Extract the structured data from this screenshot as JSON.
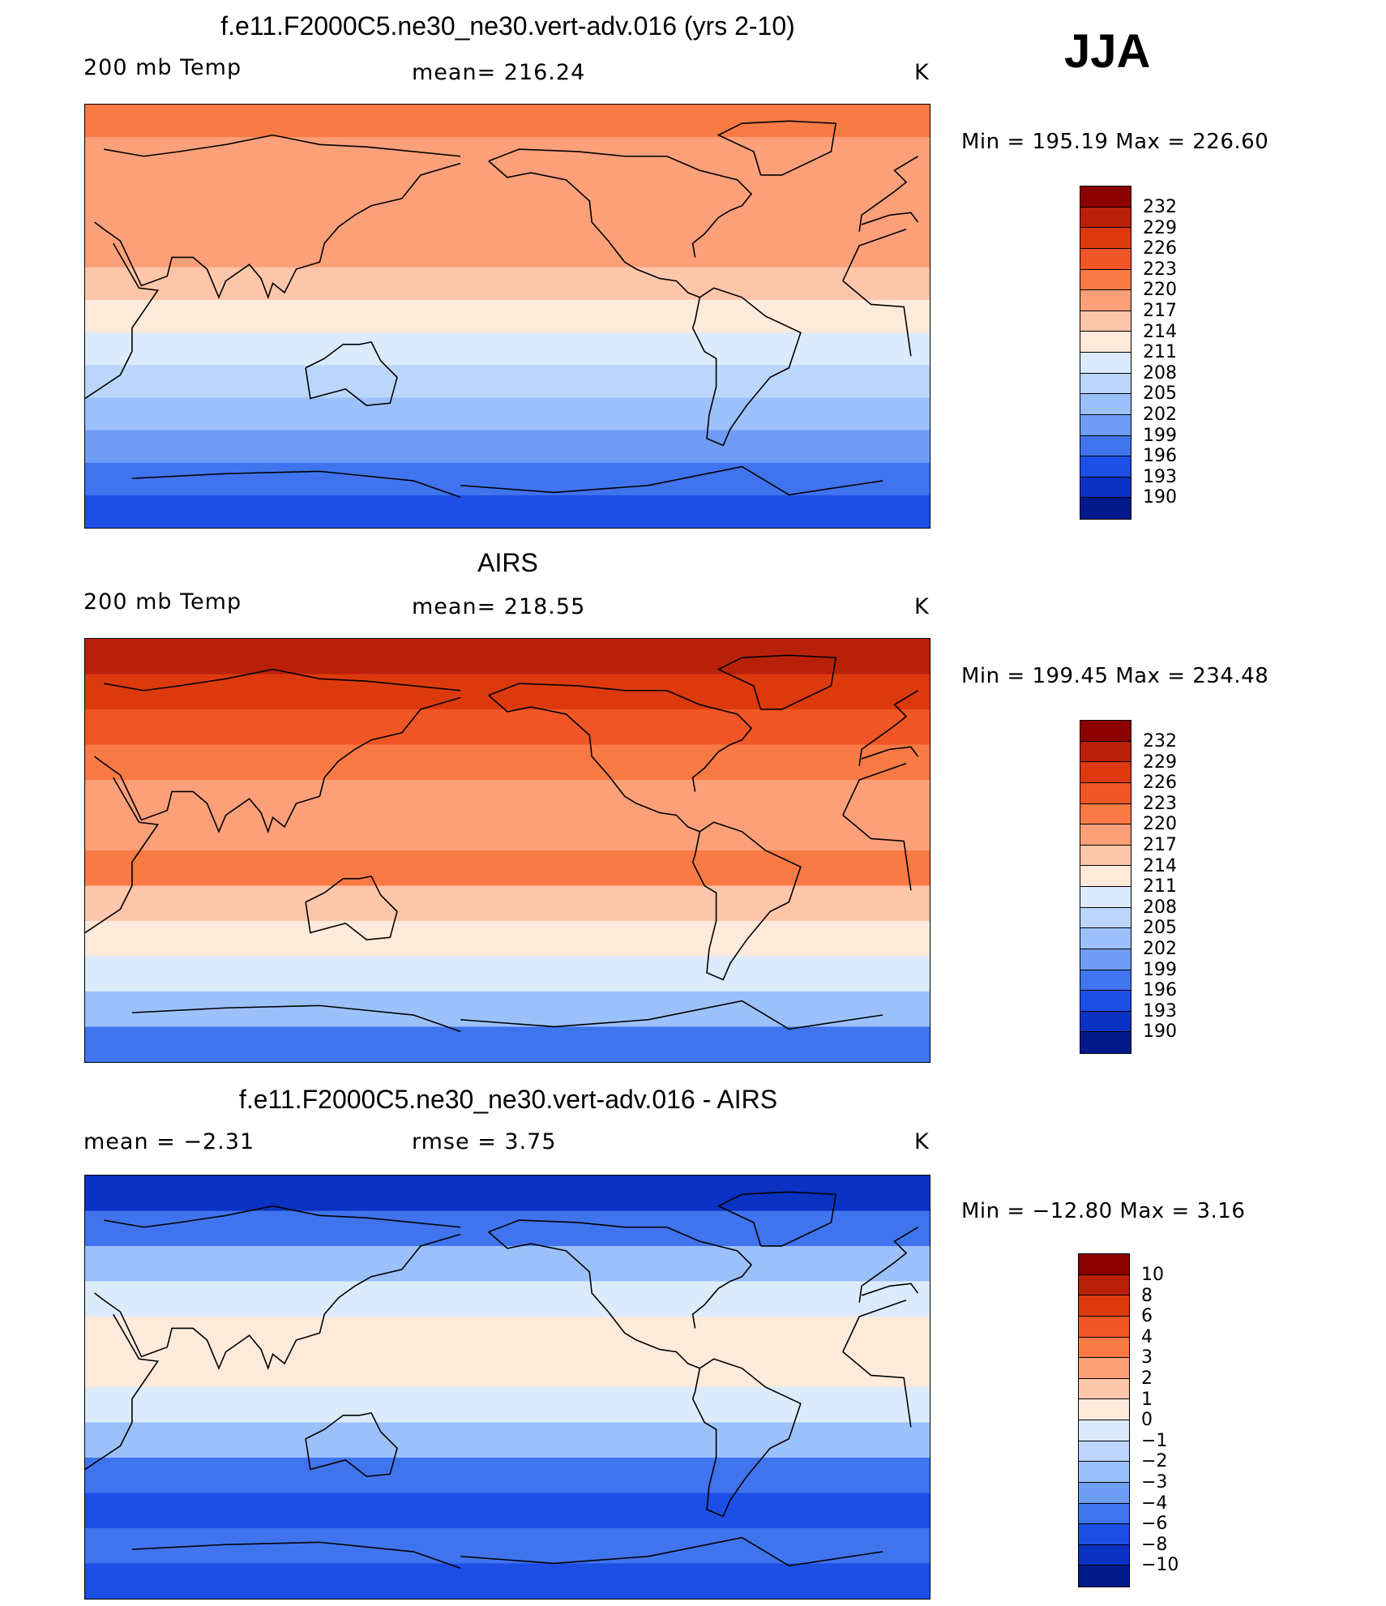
{
  "season": "JJA",
  "palette_temp": [
    "#8b0000",
    "#b8200a",
    "#dc3a0c",
    "#f05626",
    "#f97a45",
    "#fca07a",
    "#fdc6aa",
    "#feeadb",
    "#dcebfb",
    "#bcd6fb",
    "#9cc0fa",
    "#6f9df5",
    "#3f74ee",
    "#1d4fe6",
    "#0b32c2",
    "#001a8a"
  ],
  "palette_diff": [
    "#8b0000",
    "#b8200a",
    "#dc3a0c",
    "#f05626",
    "#f97a45",
    "#fca07a",
    "#fdc6aa",
    "#feeadb",
    "#dcebfb",
    "#bcd6fb",
    "#9cc0fa",
    "#6f9df5",
    "#3f74ee",
    "#1d4fe6",
    "#0b32c2",
    "#001a8a"
  ],
  "panels": [
    {
      "title": "f.e11.F2000C5.ne30_ne30.vert-adv.016 (yrs 2-10)",
      "left": "200 mb Temp",
      "center": "mean=  216.24",
      "units": "K",
      "minmax": "Min  =  195.19  Max  =  226.60",
      "levels": [
        "232",
        "229",
        "226",
        "223",
        "220",
        "217",
        "214",
        "211",
        "208",
        "205",
        "202",
        "199",
        "196",
        "193",
        "190"
      ],
      "bands": [
        {
          "color_index": 4
        },
        {
          "color_index": 5
        },
        {
          "color_index": 5
        },
        {
          "color_index": 5
        },
        {
          "color_index": 5
        },
        {
          "color_index": 6
        },
        {
          "color_index": 7
        },
        {
          "color_index": 8
        },
        {
          "color_index": 9
        },
        {
          "color_index": 10
        },
        {
          "color_index": 11
        },
        {
          "color_index": 12
        },
        {
          "color_index": 13
        }
      ]
    },
    {
      "title": "AIRS",
      "left": "200 mb Temp",
      "center": "mean=  218.55",
      "units": "K",
      "minmax": "Min  =  199.45  Max  =  234.48",
      "levels": [
        "232",
        "229",
        "226",
        "223",
        "220",
        "217",
        "214",
        "211",
        "208",
        "205",
        "202",
        "199",
        "196",
        "193",
        "190"
      ],
      "bands": [
        {
          "color_index": 1
        },
        {
          "color_index": 2
        },
        {
          "color_index": 3
        },
        {
          "color_index": 4
        },
        {
          "color_index": 5
        },
        {
          "color_index": 5
        },
        {
          "color_index": 4
        },
        {
          "color_index": 6
        },
        {
          "color_index": 7
        },
        {
          "color_index": 8
        },
        {
          "color_index": 10
        },
        {
          "color_index": 12
        }
      ]
    },
    {
      "title": "f.e11.F2000C5.ne30_ne30.vert-adv.016 - AIRS",
      "left": "mean =     −2.31",
      "center": "rmse =     3.75",
      "units": "K",
      "minmax": "Min  =  −12.80  Max  =      3.16",
      "levels": [
        "10",
        "8",
        "6",
        "4",
        "3",
        "2",
        "1",
        "0",
        "−1",
        "−2",
        "−3",
        "−4",
        "−6",
        "−8",
        "−10"
      ],
      "bands": [
        {
          "color_index": 14
        },
        {
          "color_index": 12
        },
        {
          "color_index": 10
        },
        {
          "color_index": 8
        },
        {
          "color_index": 7
        },
        {
          "color_index": 7
        },
        {
          "color_index": 8
        },
        {
          "color_index": 10
        },
        {
          "color_index": 12
        },
        {
          "color_index": 13
        },
        {
          "color_index": 12
        },
        {
          "color_index": 13
        }
      ]
    }
  ]
}
